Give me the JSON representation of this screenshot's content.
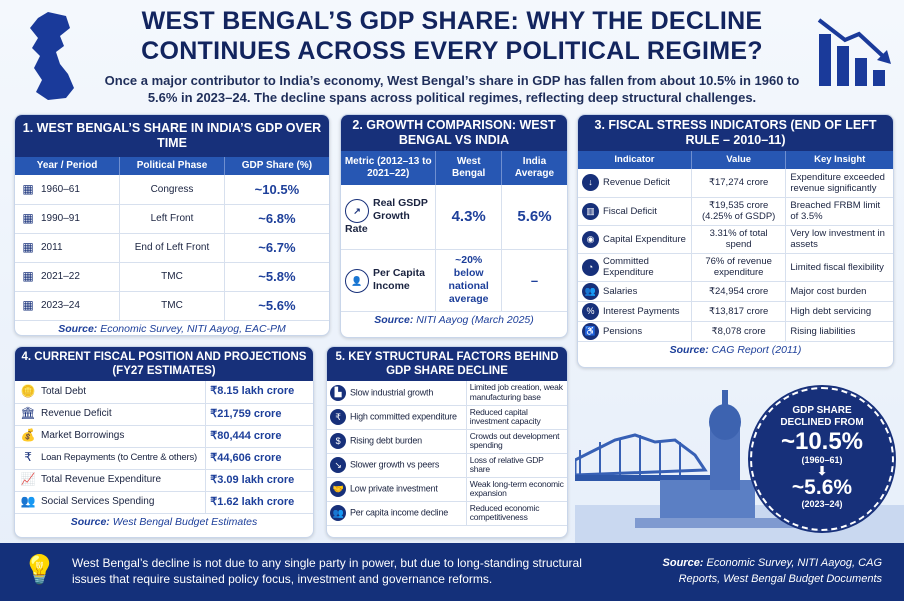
{
  "header": {
    "title": "WEST BENGAL’S GDP SHARE: WHY THE DECLINE CONTINUES ACROSS EVERY POLITICAL REGIME?",
    "subtitle": "Once a major contributor to India’s economy, West Bengal’s share in GDP has fallen from about 10.5% in 1960 to 5.6% in 2023–24. The decline spans across political regimes, reflecting deep structural challenges."
  },
  "panel1": {
    "title": "1. WEST BENGAL’S SHARE IN INDIA’S GDP OVER TIME",
    "columns": [
      "Year / Period",
      "Political Phase",
      "GDP Share (%)"
    ],
    "rows": [
      {
        "year": "1960–61",
        "phase": "Congress",
        "share": "~10.5%"
      },
      {
        "year": "1990–91",
        "phase": "Left Front",
        "share": "~6.8%"
      },
      {
        "year": "2011",
        "phase": "End of Left Front",
        "share": "~6.7%"
      },
      {
        "year": "2021–22",
        "phase": "TMC",
        "share": "~5.8%"
      },
      {
        "year": "2023–24",
        "phase": "TMC",
        "share": "~5.6%"
      }
    ],
    "source_label": "Source:",
    "source": "Economic Survey, NITI Aayog, EAC-PM"
  },
  "panel2": {
    "title": "2. GROWTH COMPARISON: WEST BENGAL VS INDIA",
    "columns": [
      "Metric (2012–13 to 2021–22)",
      "West Bengal",
      "India Average"
    ],
    "rows": [
      {
        "metric": "Real GSDP Growth Rate",
        "wb": "4.3%",
        "india": "5.6%"
      },
      {
        "metric": "Per Capita Income",
        "wb": "~20% below national average",
        "india": "–"
      }
    ],
    "source_label": "Source:",
    "source": "NITI Aayog (March 2025)"
  },
  "panel3": {
    "title": "3. FISCAL STRESS INDICATORS (END OF LEFT RULE – 2010–11)",
    "columns": [
      "Indicator",
      "Value",
      "Key Insight"
    ],
    "rows": [
      {
        "indicator": "Revenue Deficit",
        "value": "₹17,274 crore",
        "insight": "Expenditure exceeded revenue significantly"
      },
      {
        "indicator": "Fiscal Deficit",
        "value": "₹19,535 crore (4.25% of GSDP)",
        "insight": "Breached FRBM limit of 3.5%"
      },
      {
        "indicator": "Capital Expenditure",
        "value": "3.31% of total spend",
        "insight": "Very low investment in assets"
      },
      {
        "indicator": "Committed Expenditure",
        "value": "76% of revenue expenditure",
        "insight": "Limited fiscal flexibility"
      },
      {
        "indicator": "Salaries",
        "value": "₹24,954 crore",
        "insight": "Major cost burden"
      },
      {
        "indicator": "Interest Payments",
        "value": "₹13,817 crore",
        "insight": "High debt servicing"
      },
      {
        "indicator": "Pensions",
        "value": "₹8,078 crore",
        "insight": "Rising liabilities"
      }
    ],
    "source_label": "Source:",
    "source": "CAG Report (2011)"
  },
  "panel4": {
    "title": "4. CURRENT FISCAL POSITION AND PROJECTIONS (FY27 ESTIMATES)",
    "rows": [
      {
        "item": "Total Debt",
        "value": "₹8.15 lakh crore"
      },
      {
        "item": "Revenue Deficit",
        "value": "₹21,759 crore"
      },
      {
        "item": "Market Borrowings",
        "value": "₹80,444 crore"
      },
      {
        "item": "Loan Repayments (to Centre & others)",
        "value": "₹44,606 crore"
      },
      {
        "item": "Total Revenue Expenditure",
        "value": "₹3.09 lakh crore"
      },
      {
        "item": "Social Services Spending",
        "value": "₹1.62 lakh crore"
      }
    ],
    "source_label": "Source:",
    "source": "West Bengal Budget Estimates"
  },
  "panel5": {
    "title": "5. KEY STRUCTURAL FACTORS BEHIND GDP SHARE DECLINE",
    "rows": [
      {
        "factor": "Slow industrial growth",
        "effect": "Limited job creation, weak manufacturing base"
      },
      {
        "factor": "High committed expenditure",
        "effect": "Reduced capital investment capacity"
      },
      {
        "factor": "Rising debt burden",
        "effect": "Crowds out development spending"
      },
      {
        "factor": "Slower growth vs peers",
        "effect": "Loss of relative GDP share"
      },
      {
        "factor": "Low private investment",
        "effect": "Weak long-term economic expansion"
      },
      {
        "factor": "Per capita income decline",
        "effect": "Reduced economic competitiveness"
      }
    ]
  },
  "callout": {
    "line1": "GDP SHARE",
    "line2": "DECLINED FROM",
    "from": "~10.5%",
    "from_period": "(1960–61)",
    "to": "~5.6%",
    "to_period": "(2023–24)"
  },
  "footer": {
    "text": "West Bengal’s decline is not due to any single party in power, but due to long-standing structural issues that require sustained policy focus, investment and governance reforms.",
    "source_label": "Source:",
    "source": "Economic Survey, NITI Aayog, CAG Reports, West Bengal Budget Documents"
  }
}
